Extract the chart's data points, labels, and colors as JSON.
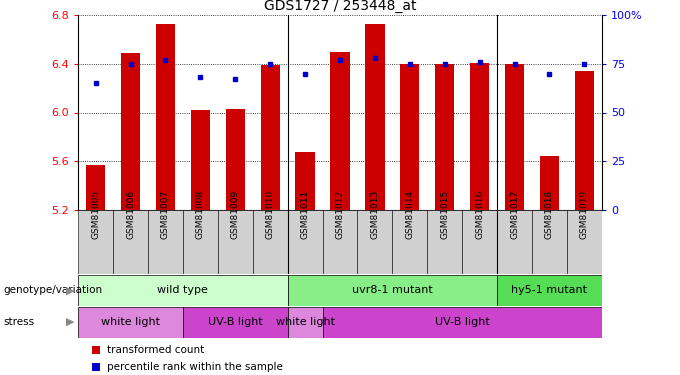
{
  "title": "GDS1727 / 253448_at",
  "samples": [
    "GSM81005",
    "GSM81006",
    "GSM81007",
    "GSM81008",
    "GSM81009",
    "GSM81010",
    "GSM81011",
    "GSM81012",
    "GSM81013",
    "GSM81014",
    "GSM81015",
    "GSM81016",
    "GSM81017",
    "GSM81018",
    "GSM81019"
  ],
  "bar_values": [
    5.57,
    6.49,
    6.73,
    6.02,
    6.03,
    6.39,
    5.68,
    6.5,
    6.73,
    6.4,
    6.4,
    6.41,
    6.4,
    5.64,
    6.34
  ],
  "dot_values": [
    65,
    75,
    77,
    68,
    67,
    75,
    70,
    77,
    78,
    75,
    75,
    76,
    75,
    70,
    75
  ],
  "ylim": [
    5.2,
    6.8
  ],
  "yticks": [
    5.2,
    5.6,
    6.0,
    6.4,
    6.8
  ],
  "right_ylim": [
    0,
    100
  ],
  "right_yticks": [
    0,
    25,
    50,
    75,
    100
  ],
  "right_yticklabels": [
    "0",
    "25",
    "50",
    "75",
    "100%"
  ],
  "bar_color": "#cc0000",
  "dot_color": "#0000cc",
  "bar_bottom": 5.2,
  "genotype_groups": [
    {
      "label": "wild type",
      "start": 0,
      "end": 6,
      "color": "#ccffcc"
    },
    {
      "label": "uvr8-1 mutant",
      "start": 6,
      "end": 12,
      "color": "#88ee88"
    },
    {
      "label": "hy5-1 mutant",
      "start": 12,
      "end": 15,
      "color": "#55dd55"
    }
  ],
  "stress_groups": [
    {
      "label": "white light",
      "start": 0,
      "end": 3,
      "color": "#dd88dd"
    },
    {
      "label": "UV-B light",
      "start": 3,
      "end": 6,
      "color": "#cc44cc"
    },
    {
      "label": "white light",
      "start": 6,
      "end": 7,
      "color": "#dd88dd"
    },
    {
      "label": "UV-B light",
      "start": 7,
      "end": 15,
      "color": "#cc44cc"
    }
  ],
  "legend_items": [
    {
      "label": "transformed count",
      "color": "#cc0000"
    },
    {
      "label": "percentile rank within the sample",
      "color": "#0000cc"
    }
  ],
  "xlabel_genotype": "genotype/variation",
  "xlabel_stress": "stress",
  "tick_label_bg": "#d0d0d0",
  "group_separators": [
    5.5,
    11.5
  ]
}
